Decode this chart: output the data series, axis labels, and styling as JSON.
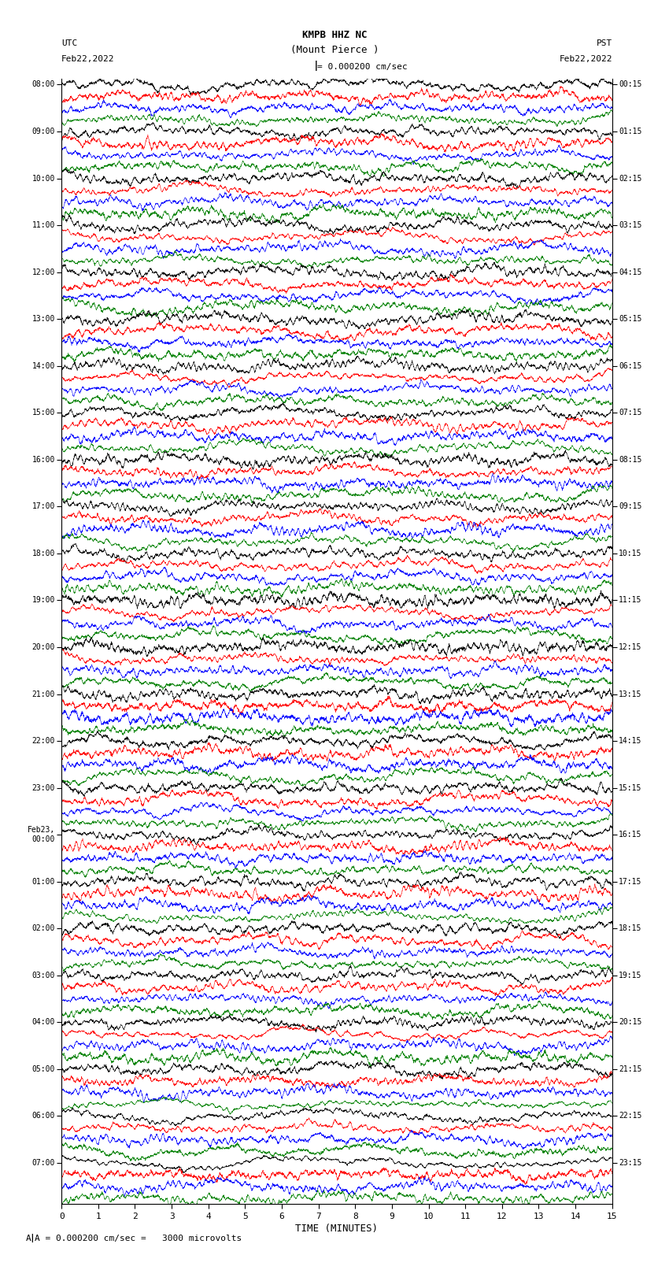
{
  "title_line1": "KMPB HHZ NC",
  "title_line2": "(Mount Pierce )",
  "scale_text": "= 0.000200 cm/sec",
  "utc_label": "UTC",
  "utc_date": "Feb22,2022",
  "pst_label": "PST",
  "pst_date": "Feb22,2022",
  "xlabel": "TIME (MINUTES)",
  "footnote": "A = 0.000200 cm/sec =   3000 microvolts",
  "left_times": [
    "08:00",
    "09:00",
    "10:00",
    "11:00",
    "12:00",
    "13:00",
    "14:00",
    "15:00",
    "16:00",
    "17:00",
    "18:00",
    "19:00",
    "20:00",
    "21:00",
    "22:00",
    "23:00",
    "Feb23,\n00:00",
    "01:00",
    "02:00",
    "03:00",
    "04:00",
    "05:00",
    "06:00",
    "07:00"
  ],
  "right_times": [
    "00:15",
    "01:15",
    "02:15",
    "03:15",
    "04:15",
    "05:15",
    "06:15",
    "07:15",
    "08:15",
    "09:15",
    "10:15",
    "11:15",
    "12:15",
    "13:15",
    "14:15",
    "15:15",
    "16:15",
    "17:15",
    "18:15",
    "19:15",
    "20:15",
    "21:15",
    "22:15",
    "23:15"
  ],
  "n_rows": 96,
  "n_cols": 3000,
  "colors_cycle": [
    "black",
    "red",
    "blue",
    "green"
  ],
  "bg_color": "white",
  "amplitude": 0.85,
  "figsize": [
    8.5,
    16.13
  ],
  "dpi": 100,
  "left_tick_rows": [
    0,
    4,
    8,
    12,
    16,
    20,
    24,
    28,
    32,
    36,
    40,
    44,
    48,
    52,
    56,
    60,
    64,
    68,
    72,
    76,
    80,
    84,
    88,
    92
  ],
  "right_tick_rows": [
    0,
    4,
    8,
    12,
    16,
    20,
    24,
    28,
    32,
    36,
    40,
    44,
    48,
    52,
    56,
    60,
    64,
    68,
    72,
    76,
    80,
    84,
    88,
    92
  ]
}
